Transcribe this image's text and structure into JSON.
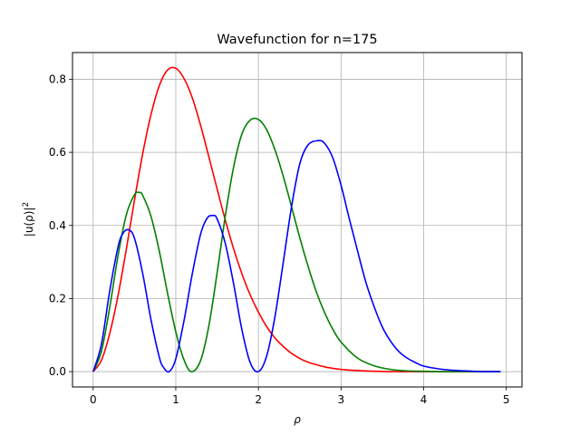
{
  "chart_data": {
    "type": "line",
    "title": "Wavefunction for n=175",
    "xlabel": "ρ",
    "ylabel_base": "|u(ρ)|",
    "ylabel_sup": "2",
    "xlim": [
      -0.25,
      5.19
    ],
    "ylim": [
      -0.042,
      0.873
    ],
    "xticks": [
      0,
      1,
      2,
      3,
      4,
      5
    ],
    "yticks": [
      0.0,
      0.2,
      0.4,
      0.6,
      0.8
    ],
    "xtick_labels": [
      "0",
      "1",
      "2",
      "3",
      "4",
      "5"
    ],
    "ytick_labels": [
      "0.0",
      "0.2",
      "0.4",
      "0.6",
      "0.8"
    ],
    "grid": true,
    "series": [
      {
        "color": "#ff0000",
        "x": [
          0,
          0.1,
          0.2,
          0.3,
          0.4,
          0.5,
          0.6,
          0.7,
          0.8,
          0.9,
          1.0,
          1.1,
          1.2,
          1.3,
          1.4,
          1.5,
          1.6,
          1.7,
          1.8,
          1.9,
          2.0,
          2.1,
          2.2,
          2.3,
          2.4,
          2.5,
          2.6,
          2.7,
          2.8,
          2.9,
          3.0,
          3.2,
          3.4,
          3.6,
          3.8,
          4.0,
          4.2,
          4.4,
          4.6,
          4.8,
          4.93
        ],
        "y": [
          0.0,
          0.031,
          0.104,
          0.207,
          0.333,
          0.469,
          0.597,
          0.703,
          0.782,
          0.825,
          0.83,
          0.802,
          0.749,
          0.674,
          0.588,
          0.5,
          0.414,
          0.336,
          0.268,
          0.21,
          0.163,
          0.123,
          0.092,
          0.069,
          0.05,
          0.036,
          0.026,
          0.019,
          0.013,
          0.009,
          0.006,
          0.003,
          0.001,
          0.0,
          0.0,
          0.0,
          0.0,
          0.0,
          0.0,
          0.0,
          0.0
        ]
      },
      {
        "color": "#008000",
        "x": [
          0,
          0.1,
          0.2,
          0.3,
          0.4,
          0.5,
          0.56,
          0.6,
          0.7,
          0.8,
          0.9,
          1.0,
          1.1,
          1.19,
          1.3,
          1.4,
          1.5,
          1.6,
          1.7,
          1.8,
          1.9,
          2.0,
          2.1,
          2.2,
          2.3,
          2.4,
          2.5,
          2.6,
          2.7,
          2.8,
          2.9,
          3.0,
          3.2,
          3.4,
          3.6,
          3.8,
          4.0,
          4.2,
          4.4,
          4.6,
          4.8,
          4.93
        ],
        "y": [
          0.0,
          0.055,
          0.175,
          0.316,
          0.428,
          0.484,
          0.49,
          0.482,
          0.425,
          0.33,
          0.215,
          0.109,
          0.032,
          0.0,
          0.03,
          0.125,
          0.27,
          0.427,
          0.56,
          0.65,
          0.688,
          0.69,
          0.662,
          0.607,
          0.535,
          0.452,
          0.367,
          0.289,
          0.219,
          0.162,
          0.116,
          0.081,
          0.037,
          0.016,
          0.006,
          0.002,
          0.001,
          0.0,
          0.0,
          0.0,
          0.0,
          0.0
        ]
      },
      {
        "color": "#0000ff",
        "x": [
          0,
          0.1,
          0.2,
          0.3,
          0.36,
          0.43,
          0.5,
          0.6,
          0.7,
          0.8,
          0.85,
          0.92,
          1.0,
          1.1,
          1.2,
          1.3,
          1.38,
          1.45,
          1.5,
          1.6,
          1.7,
          1.8,
          1.9,
          2.0,
          2.1,
          2.2,
          2.3,
          2.4,
          2.5,
          2.6,
          2.72,
          2.8,
          2.9,
          3.0,
          3.1,
          3.2,
          3.3,
          3.4,
          3.5,
          3.6,
          3.7,
          3.8,
          3.9,
          4.0,
          4.2,
          4.4,
          4.6,
          4.8,
          4.93
        ],
        "y": [
          0.0,
          0.075,
          0.22,
          0.34,
          0.378,
          0.388,
          0.365,
          0.268,
          0.142,
          0.04,
          0.012,
          0.0,
          0.035,
          0.14,
          0.268,
          0.376,
          0.42,
          0.427,
          0.418,
          0.35,
          0.24,
          0.115,
          0.025,
          0.0,
          0.043,
          0.15,
          0.298,
          0.45,
          0.568,
          0.62,
          0.632,
          0.625,
          0.585,
          0.51,
          0.418,
          0.33,
          0.245,
          0.178,
          0.122,
          0.083,
          0.055,
          0.037,
          0.025,
          0.015,
          0.007,
          0.003,
          0.001,
          0.0,
          0.0
        ]
      }
    ]
  }
}
